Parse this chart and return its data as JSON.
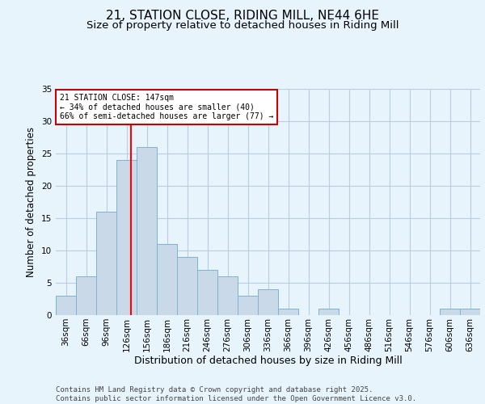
{
  "title1": "21, STATION CLOSE, RIDING MILL, NE44 6HE",
  "title2": "Size of property relative to detached houses in Riding Mill",
  "xlabel": "Distribution of detached houses by size in Riding Mill",
  "ylabel": "Number of detached properties",
  "bin_labels": [
    "36sqm",
    "66sqm",
    "96sqm",
    "126sqm",
    "156sqm",
    "186sqm",
    "216sqm",
    "246sqm",
    "276sqm",
    "306sqm",
    "336sqm",
    "366sqm",
    "396sqm",
    "426sqm",
    "456sqm",
    "486sqm",
    "516sqm",
    "546sqm",
    "576sqm",
    "606sqm",
    "636sqm"
  ],
  "bin_starts": [
    36,
    66,
    96,
    126,
    156,
    186,
    216,
    246,
    276,
    306,
    336,
    366,
    396,
    426,
    456,
    486,
    516,
    546,
    576,
    606,
    636
  ],
  "bin_width": 30,
  "values": [
    3,
    6,
    16,
    24,
    26,
    11,
    9,
    7,
    6,
    3,
    4,
    1,
    0,
    1,
    0,
    0,
    0,
    0,
    0,
    1,
    1
  ],
  "bar_color": "#c9d9e8",
  "bar_edgecolor": "#7ab4d4",
  "grid_color": "#b8cfe0",
  "vline_x": 147,
  "vline_color": "red",
  "annotation_text": "21 STATION CLOSE: 147sqm\n← 34% of detached houses are smaller (40)\n66% of semi-detached houses are larger (77) →",
  "annotation_box_color": "white",
  "annotation_box_edgecolor": "#cc0000",
  "ylim": [
    0,
    35
  ],
  "yticks": [
    0,
    5,
    10,
    15,
    20,
    25,
    30,
    35
  ],
  "footer": "Contains HM Land Registry data © Crown copyright and database right 2025.\nContains public sector information licensed under the Open Government Licence v3.0.",
  "bg_color": "#e8f4fc",
  "plot_bg_color": "#e8f4fc",
  "title1_fontsize": 11,
  "title2_fontsize": 9.5,
  "xlabel_fontsize": 9,
  "ylabel_fontsize": 8.5,
  "tick_fontsize": 7.5,
  "annot_fontsize": 7,
  "footer_fontsize": 6.5
}
